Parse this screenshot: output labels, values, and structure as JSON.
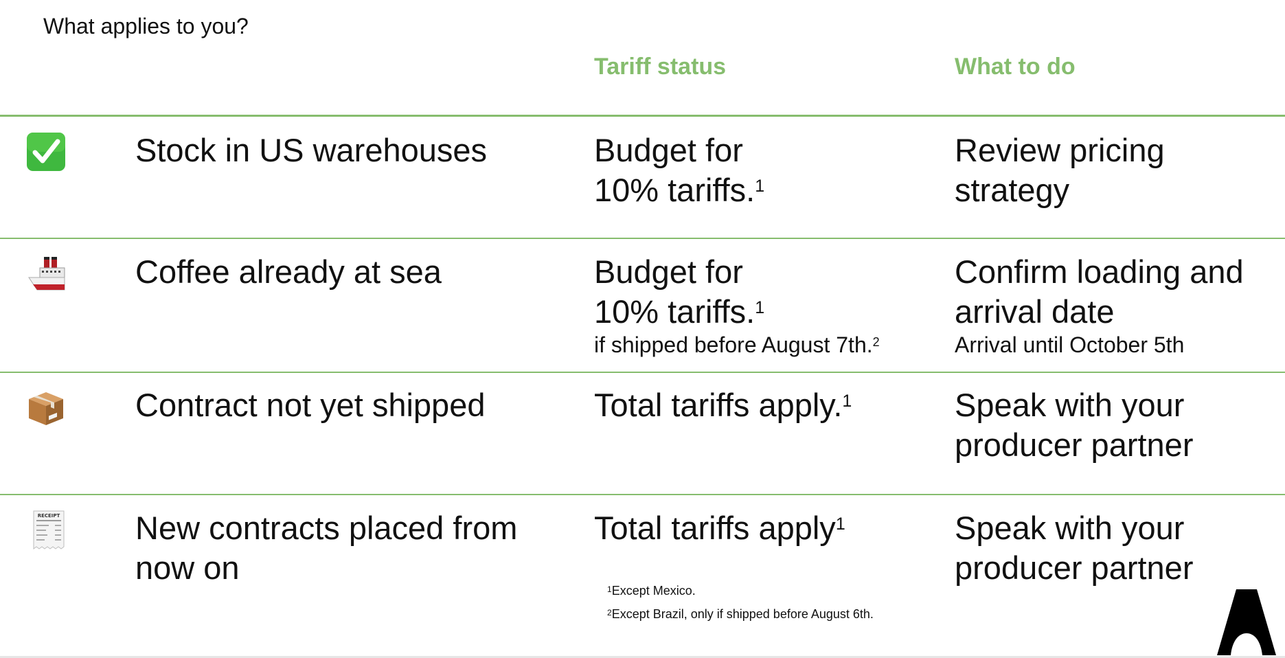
{
  "question": "What applies to you?",
  "columns": {
    "status": "Tariff status",
    "todo": "What to do"
  },
  "rows": [
    {
      "icon": "check-mark-icon",
      "scenario": "Stock in US warehouses",
      "status": "Budget for 10% tariffs.",
      "status_sup": "1",
      "status_note": "",
      "status_note_sup": "",
      "todo": "Review pricing strategy",
      "todo_note": ""
    },
    {
      "icon": "ship-icon",
      "scenario": "Coffee already at sea",
      "status": "Budget for 10% tariffs.",
      "status_sup": "1",
      "status_note": "if shipped before August 7th.",
      "status_note_sup": "2",
      "todo": "Confirm loading and arrival date",
      "todo_note": "Arrival until October 5th"
    },
    {
      "icon": "package-icon",
      "scenario": "Contract not yet shipped",
      "status": "Total tariffs apply.",
      "status_sup": "1",
      "status_note": "",
      "status_note_sup": "",
      "todo": "Speak with your producer partner",
      "todo_note": ""
    },
    {
      "icon": "receipt-icon",
      "scenario": "New contracts placed from now on",
      "status": "Total tariffs apply",
      "status_sup": "1",
      "status_note": "",
      "status_note_sup": "",
      "todo": "Speak with your producer partner",
      "todo_note": ""
    }
  ],
  "receipt_heading": "RECEIPT",
  "footnotes": [
    {
      "num": "1",
      "text": "Except Mexico."
    },
    {
      "num": "2",
      "text": "Except Brazil, only if shipped before August 6th."
    }
  ],
  "colors": {
    "accent": "#86bd6e",
    "check": "#3fb83f",
    "ship_hull": "#c0222b"
  },
  "logo": "A-logo"
}
